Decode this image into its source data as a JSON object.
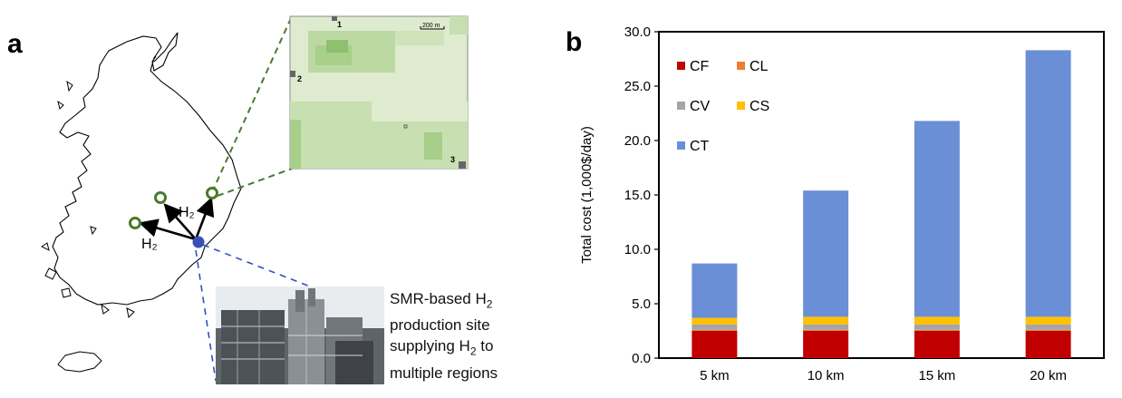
{
  "panel_a": {
    "letter": "a",
    "arrow_label_1": "H₂",
    "arrow_label_2": "H₂",
    "inset_scale": "200 m",
    "inset_sites": [
      "1",
      "2",
      "3"
    ],
    "caption_lines": [
      {
        "text": "SMR-based H",
        "sub": "2"
      },
      {
        "text": "production site",
        "sub": ""
      },
      {
        "text": "supplying H",
        "sub": "2",
        "after": " to"
      },
      {
        "text": "multiple regions",
        "sub": ""
      }
    ],
    "colors": {
      "map_outline": "#000000",
      "site_marker": "#3a50b5",
      "target_marker": "#4a7a2a",
      "inset_link": "#4a7a2a",
      "photo_link": "#3050c0"
    }
  },
  "chart_data": {
    "type": "bar",
    "stacked": true,
    "panel_letter": "b",
    "categories": [
      "5 km",
      "10 km",
      "15 km",
      "20 km"
    ],
    "series": [
      {
        "name": "CF",
        "color": "#c00000",
        "values": [
          2.5,
          2.5,
          2.5,
          2.5
        ]
      },
      {
        "name": "CL",
        "color": "#ed7d31",
        "values": [
          0.1,
          0.1,
          0.1,
          0.1
        ]
      },
      {
        "name": "CV",
        "color": "#a5a5a5",
        "values": [
          0.5,
          0.5,
          0.5,
          0.5
        ]
      },
      {
        "name": "CS",
        "color": "#ffc000",
        "values": [
          0.6,
          0.7,
          0.7,
          0.7
        ]
      },
      {
        "name": "CT",
        "color": "#6a8fd6",
        "values": [
          5.0,
          11.6,
          18.0,
          24.5
        ]
      }
    ],
    "ylabel": "Total cost (1,000$/day)",
    "xlabel": "",
    "ylim": [
      0,
      30
    ],
    "yticks": [
      "0.0",
      "5.0",
      "10.0",
      "15.0",
      "20.0",
      "25.0",
      "30.0"
    ],
    "legend": "inside-top-left",
    "grid": false
  }
}
